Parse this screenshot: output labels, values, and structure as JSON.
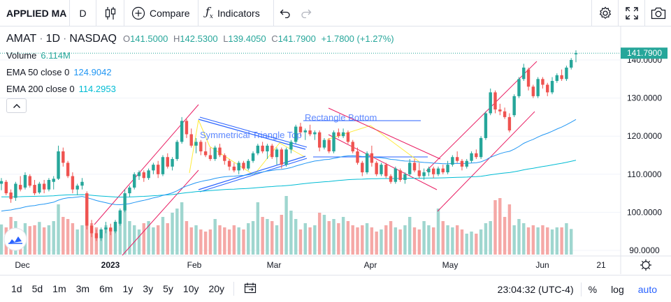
{
  "toolbar": {
    "symbol": "APPLIED MA",
    "interval": "D",
    "compare_label": "Compare",
    "indicators_label": "Indicators"
  },
  "legend": {
    "ticker": "AMAT",
    "interval": "1D",
    "exchange": "NASDAQ",
    "o_key": "O",
    "open": "141.5000",
    "h_key": "H",
    "high": "142.5300",
    "l_key": "L",
    "low": "139.4050",
    "c_key": "C",
    "close": "141.7900",
    "change": "+1.7800 (+1.27%)",
    "volume_label": "Volume",
    "volume_value": "6.114M",
    "ema50_label": "EMA 50 close 0",
    "ema50_value": "124.9042",
    "ema200_label": "EMA 200 close 0",
    "ema200_value": "114.2953"
  },
  "bottombar": {
    "ranges": [
      "1d",
      "5d",
      "1m",
      "3m",
      "6m",
      "1y",
      "3y",
      "5y",
      "10y",
      "20y"
    ],
    "time": "23:04:32 (UTC-4)",
    "percent": "%",
    "log": "log",
    "auto": "auto"
  },
  "chart_data": {
    "type": "candlestick",
    "price_axis_labels": [
      "140.0000",
      "130.0000",
      "120.0000",
      "110.0000",
      "100.0000",
      "90.0000"
    ],
    "price_ticks": [
      140,
      130,
      120,
      110,
      100,
      90
    ],
    "last_price_label": "141.7900",
    "last_price": 141.79,
    "time_axis_labels": [
      "Dec",
      "2023",
      "Feb",
      "Mar",
      "Apr",
      "May",
      "Jun",
      "21"
    ],
    "annotations": [
      "Rectangle Bottom",
      "Symmetrical Triangle Top"
    ],
    "colors": {
      "up": "#26a69a",
      "down": "#ef5350",
      "ema50": "#2196f3",
      "ema200": "#00bcd4",
      "channel": "#e91e63",
      "triangle": "#ffeb3b"
    },
    "candles": [
      {
        "o": 107.5,
        "h": 109.0,
        "l": 105.8,
        "c": 108.2
      },
      {
        "o": 108.0,
        "h": 108.5,
        "l": 104.5,
        "c": 105.0
      },
      {
        "o": 105.2,
        "h": 106.0,
        "l": 102.5,
        "c": 103.5
      },
      {
        "o": 103.8,
        "h": 108.0,
        "l": 103.0,
        "c": 107.5
      },
      {
        "o": 107.2,
        "h": 109.5,
        "l": 105.5,
        "c": 106.0
      },
      {
        "o": 106.5,
        "h": 110.5,
        "l": 106.0,
        "c": 109.8
      },
      {
        "o": 109.5,
        "h": 110.0,
        "l": 106.5,
        "c": 107.0
      },
      {
        "o": 107.2,
        "h": 108.5,
        "l": 104.5,
        "c": 105.0
      },
      {
        "o": 105.2,
        "h": 108.0,
        "l": 104.8,
        "c": 107.5
      },
      {
        "o": 107.5,
        "h": 108.5,
        "l": 105.0,
        "c": 106.0
      },
      {
        "o": 106.0,
        "h": 109.0,
        "l": 105.5,
        "c": 108.5
      },
      {
        "o": 108.0,
        "h": 109.5,
        "l": 106.0,
        "c": 108.8
      },
      {
        "o": 108.8,
        "h": 117.5,
        "l": 108.5,
        "c": 116.0
      },
      {
        "o": 116.0,
        "h": 117.0,
        "l": 112.0,
        "c": 113.0
      },
      {
        "o": 113.0,
        "h": 113.5,
        "l": 109.0,
        "c": 109.5
      },
      {
        "o": 109.5,
        "h": 110.5,
        "l": 105.0,
        "c": 106.0
      },
      {
        "o": 106.0,
        "h": 107.5,
        "l": 104.5,
        "c": 107.0
      },
      {
        "o": 107.0,
        "h": 109.0,
        "l": 106.0,
        "c": 108.0
      },
      {
        "o": 105.0,
        "h": 105.5,
        "l": 95.5,
        "c": 96.5
      },
      {
        "o": 96.5,
        "h": 98.0,
        "l": 93.5,
        "c": 94.5
      },
      {
        "o": 94.5,
        "h": 95.5,
        "l": 92.5,
        "c": 93.2
      },
      {
        "o": 93.2,
        "h": 96.0,
        "l": 92.5,
        "c": 95.5
      },
      {
        "o": 95.5,
        "h": 97.5,
        "l": 94.5,
        "c": 96.0
      },
      {
        "o": 96.0,
        "h": 97.0,
        "l": 94.0,
        "c": 95.0
      },
      {
        "o": 95.0,
        "h": 98.0,
        "l": 94.5,
        "c": 97.5
      },
      {
        "o": 97.0,
        "h": 101.0,
        "l": 96.5,
        "c": 100.5
      },
      {
        "o": 100.5,
        "h": 106.0,
        "l": 100.0,
        "c": 105.0
      },
      {
        "o": 105.0,
        "h": 107.0,
        "l": 104.0,
        "c": 106.5
      },
      {
        "o": 106.5,
        "h": 110.5,
        "l": 106.0,
        "c": 110.0
      },
      {
        "o": 109.5,
        "h": 111.0,
        "l": 108.5,
        "c": 110.5
      },
      {
        "o": 110.5,
        "h": 111.0,
        "l": 108.0,
        "c": 109.0
      },
      {
        "o": 109.0,
        "h": 111.5,
        "l": 108.5,
        "c": 111.0
      },
      {
        "o": 111.0,
        "h": 113.0,
        "l": 110.0,
        "c": 112.5
      },
      {
        "o": 112.5,
        "h": 113.5,
        "l": 109.0,
        "c": 110.0
      },
      {
        "o": 110.0,
        "h": 115.0,
        "l": 109.5,
        "c": 114.5
      },
      {
        "o": 114.5,
        "h": 115.5,
        "l": 111.5,
        "c": 112.0
      },
      {
        "o": 112.0,
        "h": 114.5,
        "l": 111.0,
        "c": 114.0
      },
      {
        "o": 114.0,
        "h": 119.0,
        "l": 113.5,
        "c": 118.5
      },
      {
        "o": 118.5,
        "h": 125.0,
        "l": 118.0,
        "c": 124.0
      },
      {
        "o": 124.0,
        "h": 124.5,
        "l": 119.5,
        "c": 120.5
      },
      {
        "o": 120.5,
        "h": 122.0,
        "l": 117.0,
        "c": 117.5
      },
      {
        "o": 117.5,
        "h": 119.5,
        "l": 115.5,
        "c": 118.5
      },
      {
        "o": 118.5,
        "h": 119.0,
        "l": 115.0,
        "c": 116.0
      },
      {
        "o": 116.0,
        "h": 118.5,
        "l": 114.5,
        "c": 115.0
      },
      {
        "o": 115.0,
        "h": 117.0,
        "l": 113.5,
        "c": 114.0
      },
      {
        "o": 114.0,
        "h": 117.5,
        "l": 113.5,
        "c": 117.0
      },
      {
        "o": 117.0,
        "h": 118.0,
        "l": 114.5,
        "c": 115.0
      },
      {
        "o": 115.0,
        "h": 115.5,
        "l": 112.5,
        "c": 113.5
      },
      {
        "o": 113.5,
        "h": 114.0,
        "l": 111.0,
        "c": 112.0
      },
      {
        "o": 112.0,
        "h": 113.0,
        "l": 110.5,
        "c": 111.0
      },
      {
        "o": 111.0,
        "h": 113.5,
        "l": 110.0,
        "c": 113.0
      },
      {
        "o": 113.0,
        "h": 113.5,
        "l": 111.0,
        "c": 111.5
      },
      {
        "o": 111.5,
        "h": 114.0,
        "l": 111.0,
        "c": 113.5
      },
      {
        "o": 113.5,
        "h": 116.0,
        "l": 113.0,
        "c": 115.5
      },
      {
        "o": 115.5,
        "h": 118.0,
        "l": 115.0,
        "c": 117.5
      },
      {
        "o": 117.5,
        "h": 118.5,
        "l": 115.5,
        "c": 116.0
      },
      {
        "o": 116.0,
        "h": 118.0,
        "l": 114.0,
        "c": 117.5
      },
      {
        "o": 117.5,
        "h": 118.0,
        "l": 114.0,
        "c": 114.5
      },
      {
        "o": 114.5,
        "h": 117.0,
        "l": 112.5,
        "c": 116.5
      },
      {
        "o": 116.5,
        "h": 117.0,
        "l": 111.5,
        "c": 112.5
      },
      {
        "o": 112.5,
        "h": 117.0,
        "l": 112.0,
        "c": 116.5
      },
      {
        "o": 116.5,
        "h": 119.0,
        "l": 115.5,
        "c": 118.5
      },
      {
        "o": 118.5,
        "h": 123.0,
        "l": 118.0,
        "c": 122.5
      },
      {
        "o": 122.5,
        "h": 123.5,
        "l": 120.0,
        "c": 121.0
      },
      {
        "o": 121.0,
        "h": 122.0,
        "l": 119.0,
        "c": 121.5
      },
      {
        "o": 121.5,
        "h": 123.0,
        "l": 120.0,
        "c": 120.5
      },
      {
        "o": 120.5,
        "h": 121.5,
        "l": 119.0,
        "c": 121.0
      },
      {
        "o": 121.0,
        "h": 121.5,
        "l": 116.0,
        "c": 117.0
      },
      {
        "o": 117.0,
        "h": 119.5,
        "l": 116.5,
        "c": 119.0
      },
      {
        "o": 119.0,
        "h": 119.5,
        "l": 115.5,
        "c": 116.0
      },
      {
        "o": 116.0,
        "h": 121.5,
        "l": 115.5,
        "c": 121.0
      },
      {
        "o": 121.0,
        "h": 122.0,
        "l": 119.5,
        "c": 120.0
      },
      {
        "o": 120.0,
        "h": 122.0,
        "l": 119.5,
        "c": 121.0
      },
      {
        "o": 121.0,
        "h": 121.5,
        "l": 118.0,
        "c": 118.5
      },
      {
        "o": 118.5,
        "h": 119.0,
        "l": 115.5,
        "c": 116.0
      },
      {
        "o": 116.0,
        "h": 117.0,
        "l": 112.5,
        "c": 113.0
      },
      {
        "o": 113.0,
        "h": 113.5,
        "l": 109.5,
        "c": 110.5
      },
      {
        "o": 110.5,
        "h": 116.0,
        "l": 110.0,
        "c": 115.5
      },
      {
        "o": 115.5,
        "h": 117.5,
        "l": 112.0,
        "c": 113.0
      },
      {
        "o": 113.0,
        "h": 113.5,
        "l": 109.5,
        "c": 110.0
      },
      {
        "o": 110.0,
        "h": 113.0,
        "l": 109.5,
        "c": 112.5
      },
      {
        "o": 112.5,
        "h": 113.0,
        "l": 109.0,
        "c": 109.5
      },
      {
        "o": 109.5,
        "h": 110.0,
        "l": 107.5,
        "c": 108.0
      },
      {
        "o": 108.0,
        "h": 112.0,
        "l": 107.5,
        "c": 111.5
      },
      {
        "o": 111.0,
        "h": 111.5,
        "l": 108.0,
        "c": 108.5
      },
      {
        "o": 108.5,
        "h": 110.5,
        "l": 107.5,
        "c": 110.0
      },
      {
        "o": 110.0,
        "h": 114.0,
        "l": 109.5,
        "c": 113.0
      },
      {
        "o": 113.0,
        "h": 114.0,
        "l": 110.5,
        "c": 111.0
      },
      {
        "o": 111.0,
        "h": 113.0,
        "l": 109.0,
        "c": 109.5
      },
      {
        "o": 109.5,
        "h": 111.5,
        "l": 108.5,
        "c": 110.5
      },
      {
        "o": 110.5,
        "h": 112.0,
        "l": 109.5,
        "c": 111.5
      },
      {
        "o": 111.5,
        "h": 112.0,
        "l": 109.0,
        "c": 110.0
      },
      {
        "o": 110.0,
        "h": 112.0,
        "l": 109.5,
        "c": 111.5
      },
      {
        "o": 111.5,
        "h": 112.5,
        "l": 110.0,
        "c": 110.5
      },
      {
        "o": 110.5,
        "h": 113.5,
        "l": 110.0,
        "c": 112.5
      },
      {
        "o": 112.5,
        "h": 115.0,
        "l": 112.0,
        "c": 114.5
      },
      {
        "o": 114.5,
        "h": 116.0,
        "l": 113.0,
        "c": 113.5
      },
      {
        "o": 113.5,
        "h": 114.0,
        "l": 111.0,
        "c": 112.0
      },
      {
        "o": 112.0,
        "h": 114.0,
        "l": 111.5,
        "c": 113.5
      },
      {
        "o": 113.5,
        "h": 116.0,
        "l": 113.0,
        "c": 115.5
      },
      {
        "o": 115.5,
        "h": 116.5,
        "l": 114.0,
        "c": 114.5
      },
      {
        "o": 114.5,
        "h": 120.0,
        "l": 114.0,
        "c": 119.5
      },
      {
        "o": 119.5,
        "h": 126.5,
        "l": 119.0,
        "c": 126.0
      },
      {
        "o": 126.0,
        "h": 132.5,
        "l": 125.5,
        "c": 131.5
      },
      {
        "o": 131.5,
        "h": 132.0,
        "l": 126.0,
        "c": 127.0
      },
      {
        "o": 127.0,
        "h": 128.5,
        "l": 125.5,
        "c": 126.5
      },
      {
        "o": 126.5,
        "h": 127.5,
        "l": 124.5,
        "c": 125.0
      },
      {
        "o": 125.0,
        "h": 126.0,
        "l": 121.0,
        "c": 121.5
      },
      {
        "o": 125.5,
        "h": 131.0,
        "l": 125.0,
        "c": 130.5
      },
      {
        "o": 130.5,
        "h": 135.5,
        "l": 130.0,
        "c": 135.0
      },
      {
        "o": 135.0,
        "h": 139.0,
        "l": 134.5,
        "c": 138.0
      },
      {
        "o": 137.5,
        "h": 138.0,
        "l": 132.0,
        "c": 133.0
      },
      {
        "o": 133.0,
        "h": 133.5,
        "l": 130.0,
        "c": 130.5
      },
      {
        "o": 130.5,
        "h": 135.5,
        "l": 130.0,
        "c": 135.0
      },
      {
        "o": 135.0,
        "h": 135.5,
        "l": 132.5,
        "c": 133.5
      },
      {
        "o": 133.5,
        "h": 134.0,
        "l": 130.5,
        "c": 131.5
      },
      {
        "o": 131.5,
        "h": 135.5,
        "l": 131.0,
        "c": 134.5
      },
      {
        "o": 134.5,
        "h": 136.5,
        "l": 134.0,
        "c": 136.0
      },
      {
        "o": 136.0,
        "h": 137.5,
        "l": 134.5,
        "c": 135.0
      },
      {
        "o": 135.0,
        "h": 138.5,
        "l": 134.5,
        "c": 138.0
      },
      {
        "o": 138.0,
        "h": 140.5,
        "l": 137.5,
        "c": 140.0
      },
      {
        "o": 141.5,
        "h": 142.53,
        "l": 139.405,
        "c": 141.79
      }
    ],
    "volumes": [
      7.2,
      6.5,
      9.0,
      8.0,
      6.0,
      7.5,
      6.8,
      7.0,
      7.8,
      6.5,
      7.0,
      8.0,
      12.0,
      9.0,
      8.5,
      7.5,
      6.0,
      7.0,
      10.5,
      7.5,
      6.5,
      5.5,
      7.0,
      6.0,
      7.0,
      8.0,
      11.5,
      8.0,
      7.0,
      6.0,
      7.5,
      8.0,
      6.5,
      7.0,
      9.0,
      7.5,
      10.0,
      11.0,
      12.5,
      8.0,
      6.5,
      7.0,
      6.0,
      5.5,
      6.0,
      8.5,
      7.0,
      6.5,
      6.0,
      7.0,
      6.5,
      6.0,
      7.5,
      8.0,
      12.5,
      9.0,
      8.5,
      8.0,
      7.0,
      9.5,
      14.0,
      10.5,
      8.5,
      6.0,
      7.5,
      6.5,
      7.0,
      10.0,
      9.5,
      8.0,
      8.5,
      7.5,
      9.0,
      8.0,
      7.0,
      6.5,
      7.0,
      7.5,
      6.5,
      5.5,
      6.0,
      7.0,
      8.0,
      6.5,
      6.0,
      7.0,
      9.0,
      6.5,
      6.0,
      8.0,
      7.0,
      6.5,
      11.0,
      8.0,
      7.0,
      6.5,
      7.0,
      6.0,
      5.0,
      5.5,
      5.0,
      6.0,
      7.5,
      8.0,
      13.0,
      13.5,
      9.0,
      12.0,
      7.0,
      8.5,
      7.5,
      6.5,
      7.0,
      6.5,
      7.0,
      6.5,
      6.0,
      6.5,
      6.5,
      7.5,
      6.114
    ]
  }
}
